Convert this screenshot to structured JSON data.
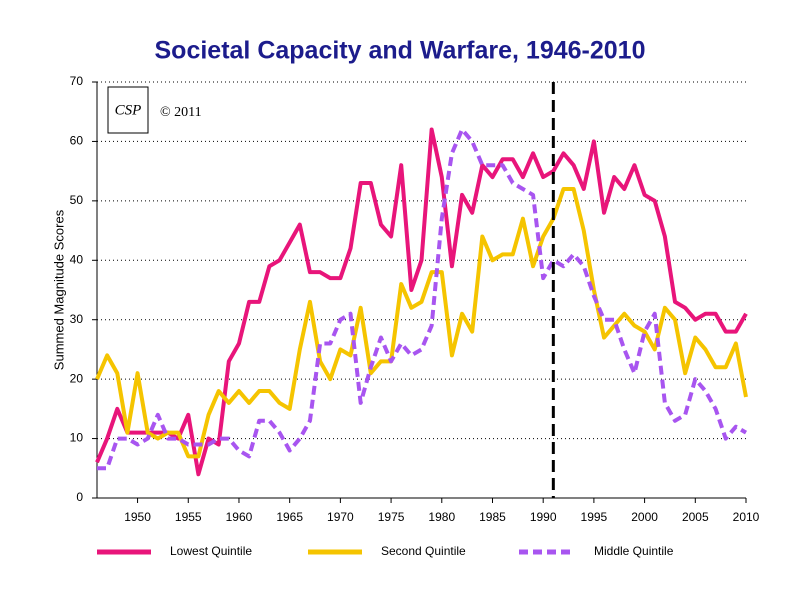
{
  "chart_data": {
    "type": "line",
    "title": "Societal Capacity and Warfare, 1946-2010",
    "y_label": "Summed Magnitude Scores",
    "logo_text": "CSP",
    "copyright": "© 2011",
    "x": [
      1946,
      1947,
      1948,
      1949,
      1950,
      1951,
      1952,
      1953,
      1954,
      1955,
      1956,
      1957,
      1958,
      1959,
      1960,
      1961,
      1962,
      1963,
      1964,
      1965,
      1966,
      1967,
      1968,
      1969,
      1970,
      1971,
      1972,
      1973,
      1974,
      1975,
      1976,
      1977,
      1978,
      1979,
      1980,
      1981,
      1982,
      1983,
      1984,
      1985,
      1986,
      1987,
      1988,
      1989,
      1990,
      1991,
      1992,
      1993,
      1994,
      1995,
      1996,
      1997,
      1998,
      1999,
      2000,
      2001,
      2002,
      2003,
      2004,
      2005,
      2006,
      2007,
      2008,
      2009,
      2010
    ],
    "series": [
      {
        "name": "Lowest Quintile",
        "color": "#e8157a",
        "dashed": false,
        "values": [
          6,
          10,
          15,
          11,
          11,
          11,
          11,
          11,
          10,
          14,
          4,
          10,
          9,
          23,
          26,
          33,
          33,
          39,
          40,
          43,
          46,
          38,
          38,
          37,
          37,
          42,
          53,
          53,
          46,
          44,
          56,
          35,
          40,
          62,
          54,
          39,
          51,
          48,
          56,
          54,
          57,
          57,
          54,
          58,
          54,
          55,
          58,
          56,
          52,
          60,
          48,
          54,
          52,
          56,
          51,
          50,
          44,
          33,
          32,
          30,
          31,
          31,
          28,
          28,
          31
        ]
      },
      {
        "name": "Second Quintile",
        "color": "#f5c400",
        "dashed": false,
        "values": [
          20,
          24,
          21,
          11,
          21,
          11,
          10,
          11,
          11,
          7,
          7,
          14,
          18,
          16,
          18,
          16,
          18,
          18,
          16,
          15,
          25,
          33,
          23,
          20,
          25,
          24,
          32,
          21,
          23,
          23,
          36,
          32,
          33,
          38,
          38,
          24,
          31,
          28,
          44,
          40,
          41,
          41,
          47,
          39,
          44,
          47,
          52,
          52,
          45,
          35,
          27,
          29,
          31,
          29,
          28,
          25,
          32,
          30,
          21,
          27,
          25,
          22,
          22,
          26,
          17
        ]
      },
      {
        "name": "Middle Quintile",
        "color": "#a855f0",
        "dashed": true,
        "values": [
          5,
          5,
          10,
          10,
          9,
          10,
          14,
          10,
          10,
          9,
          9,
          9,
          10,
          10,
          8,
          7,
          13,
          13,
          11,
          8,
          10,
          13,
          26,
          26,
          30,
          31,
          16,
          22,
          27,
          23,
          26,
          24,
          25,
          29,
          47,
          58,
          62,
          60,
          56,
          56,
          56,
          53,
          52,
          51,
          37,
          40,
          39,
          41,
          39,
          34,
          30,
          30,
          25,
          21,
          28,
          31,
          16,
          13,
          14,
          20,
          18,
          15,
          10,
          12,
          11
        ]
      }
    ],
    "reference_x": 1991,
    "xlim": [
      1946,
      2010
    ],
    "xticks": [
      1950,
      1955,
      1960,
      1965,
      1970,
      1975,
      1980,
      1985,
      1990,
      1995,
      2000,
      2005,
      2010
    ],
    "ylim": [
      0,
      70
    ],
    "yticks": [
      0,
      10,
      20,
      30,
      40,
      50,
      60,
      70
    ],
    "grid": true,
    "legend": "bottom"
  }
}
